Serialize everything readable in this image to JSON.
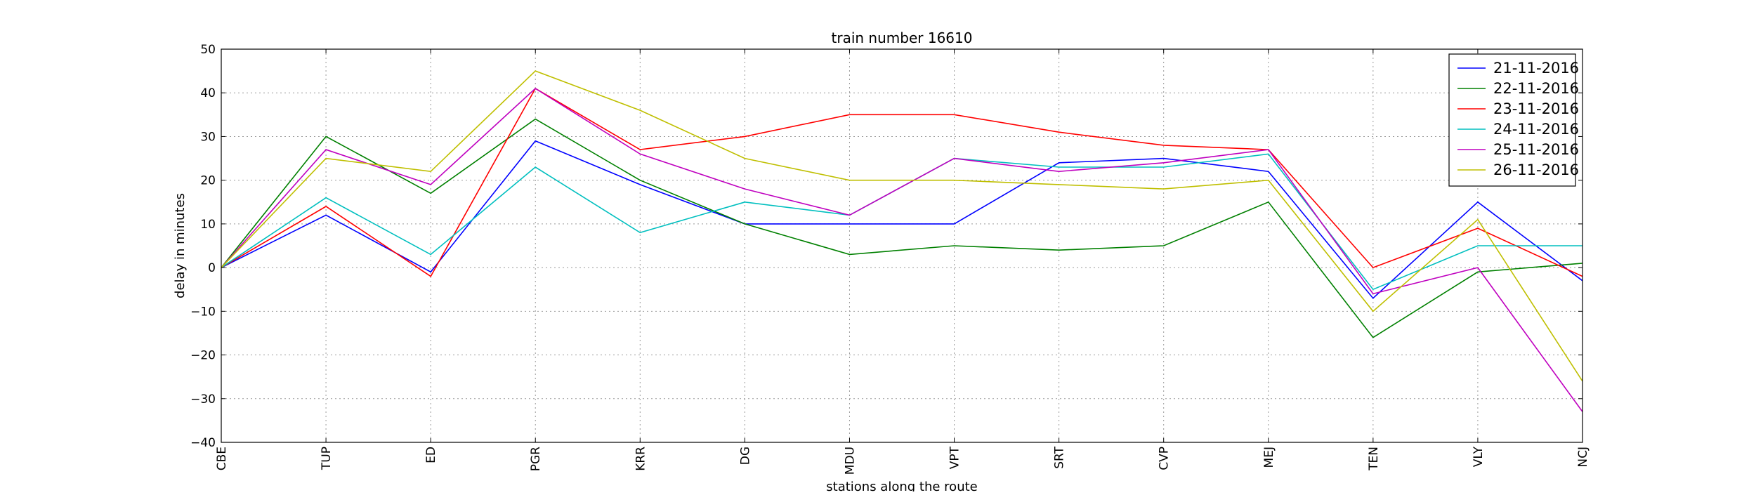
{
  "chart_data": {
    "type": "line",
    "title": "train number 16610",
    "xlabel": "stations along the route",
    "ylabel": "delay in minutes",
    "categories": [
      "CBE",
      "TUP",
      "ED",
      "PGR",
      "KRR",
      "DG",
      "MDU",
      "VPT",
      "SRT",
      "CVP",
      "MEJ",
      "TEN",
      "VLY",
      "NCJ"
    ],
    "ylim": [
      -40,
      50
    ],
    "yticks": [
      -40,
      -30,
      -20,
      -10,
      0,
      10,
      20,
      30,
      40,
      50
    ],
    "grid": true,
    "legend_position": "top-right",
    "series": [
      {
        "name": "21-11-2016",
        "color": "#0000ff",
        "values": [
          0,
          12,
          -1,
          29,
          19,
          10,
          10,
          10,
          24,
          25,
          22,
          -7,
          15,
          -3
        ]
      },
      {
        "name": "22-11-2016",
        "color": "#008000",
        "values": [
          0,
          30,
          17,
          34,
          20,
          10,
          3,
          5,
          4,
          5,
          15,
          -16,
          -1,
          1
        ]
      },
      {
        "name": "23-11-2016",
        "color": "#ff0000",
        "values": [
          0,
          14,
          -2,
          41,
          27,
          30,
          35,
          35,
          31,
          28,
          27,
          0,
          9,
          -2
        ]
      },
      {
        "name": "24-11-2016",
        "color": "#00bfbf",
        "values": [
          0,
          16,
          3,
          23,
          8,
          15,
          12,
          25,
          23,
          23,
          26,
          -5,
          5,
          5
        ]
      },
      {
        "name": "25-11-2016",
        "color": "#bf00bf",
        "values": [
          0,
          27,
          19,
          41,
          26,
          18,
          12,
          25,
          22,
          24,
          27,
          -6,
          0,
          -33
        ]
      },
      {
        "name": "26-11-2016",
        "color": "#bfbf00",
        "values": [
          0,
          25,
          22,
          45,
          36,
          25,
          20,
          20,
          19,
          18,
          20,
          -10,
          11,
          -26
        ]
      }
    ]
  }
}
